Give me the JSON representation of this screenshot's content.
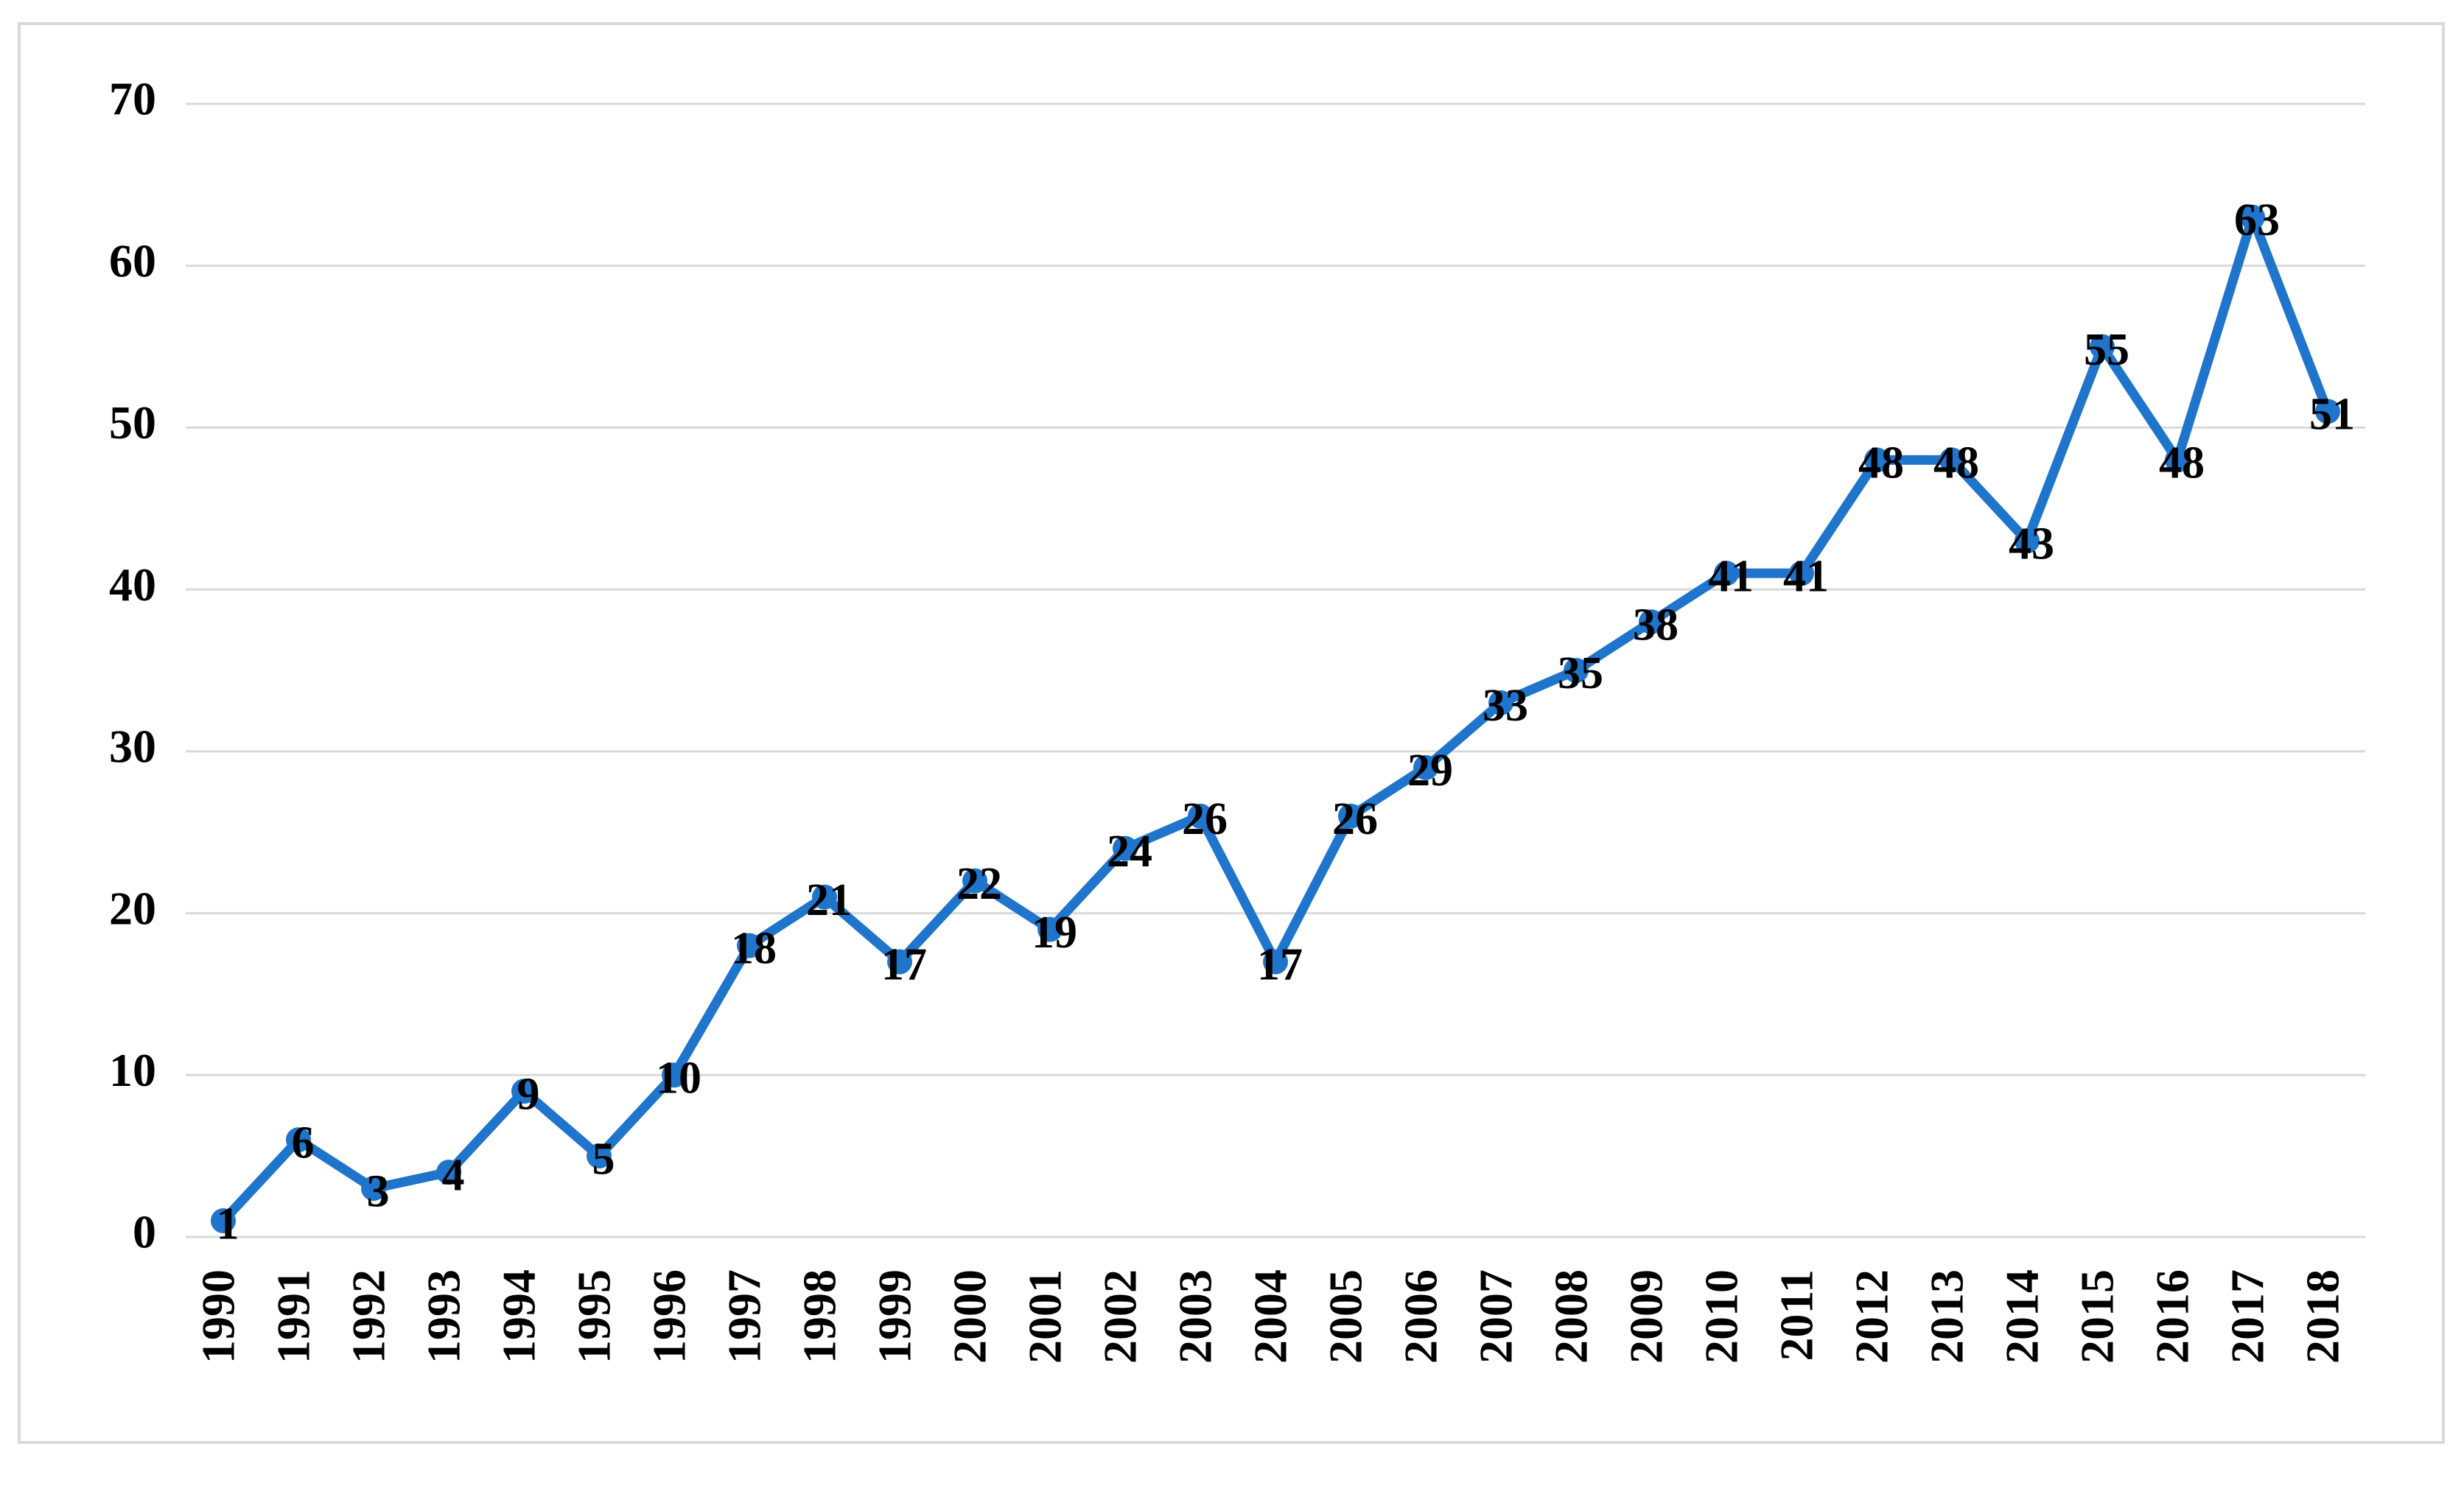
{
  "chart_data": {
    "type": "line",
    "categories": [
      "1990",
      "1991",
      "1992",
      "1993",
      "1994",
      "1995",
      "1996",
      "1997",
      "1998",
      "1999",
      "2000",
      "2001",
      "2002",
      "2003",
      "2004",
      "2005",
      "2006",
      "2007",
      "2008",
      "2009",
      "2010",
      "2011",
      "2012",
      "2013",
      "2014",
      "2015",
      "2016",
      "2017",
      "2018"
    ],
    "values": [
      1,
      6,
      3,
      4,
      9,
      5,
      10,
      18,
      21,
      17,
      22,
      19,
      24,
      26,
      17,
      26,
      29,
      33,
      35,
      38,
      41,
      41,
      48,
      48,
      43,
      55,
      48,
      63,
      51
    ],
    "color": "#1f75cc",
    "ylim": [
      0,
      70
    ],
    "yticks": [
      0,
      10,
      20,
      30,
      40,
      50,
      60,
      70
    ],
    "grid": true
  }
}
